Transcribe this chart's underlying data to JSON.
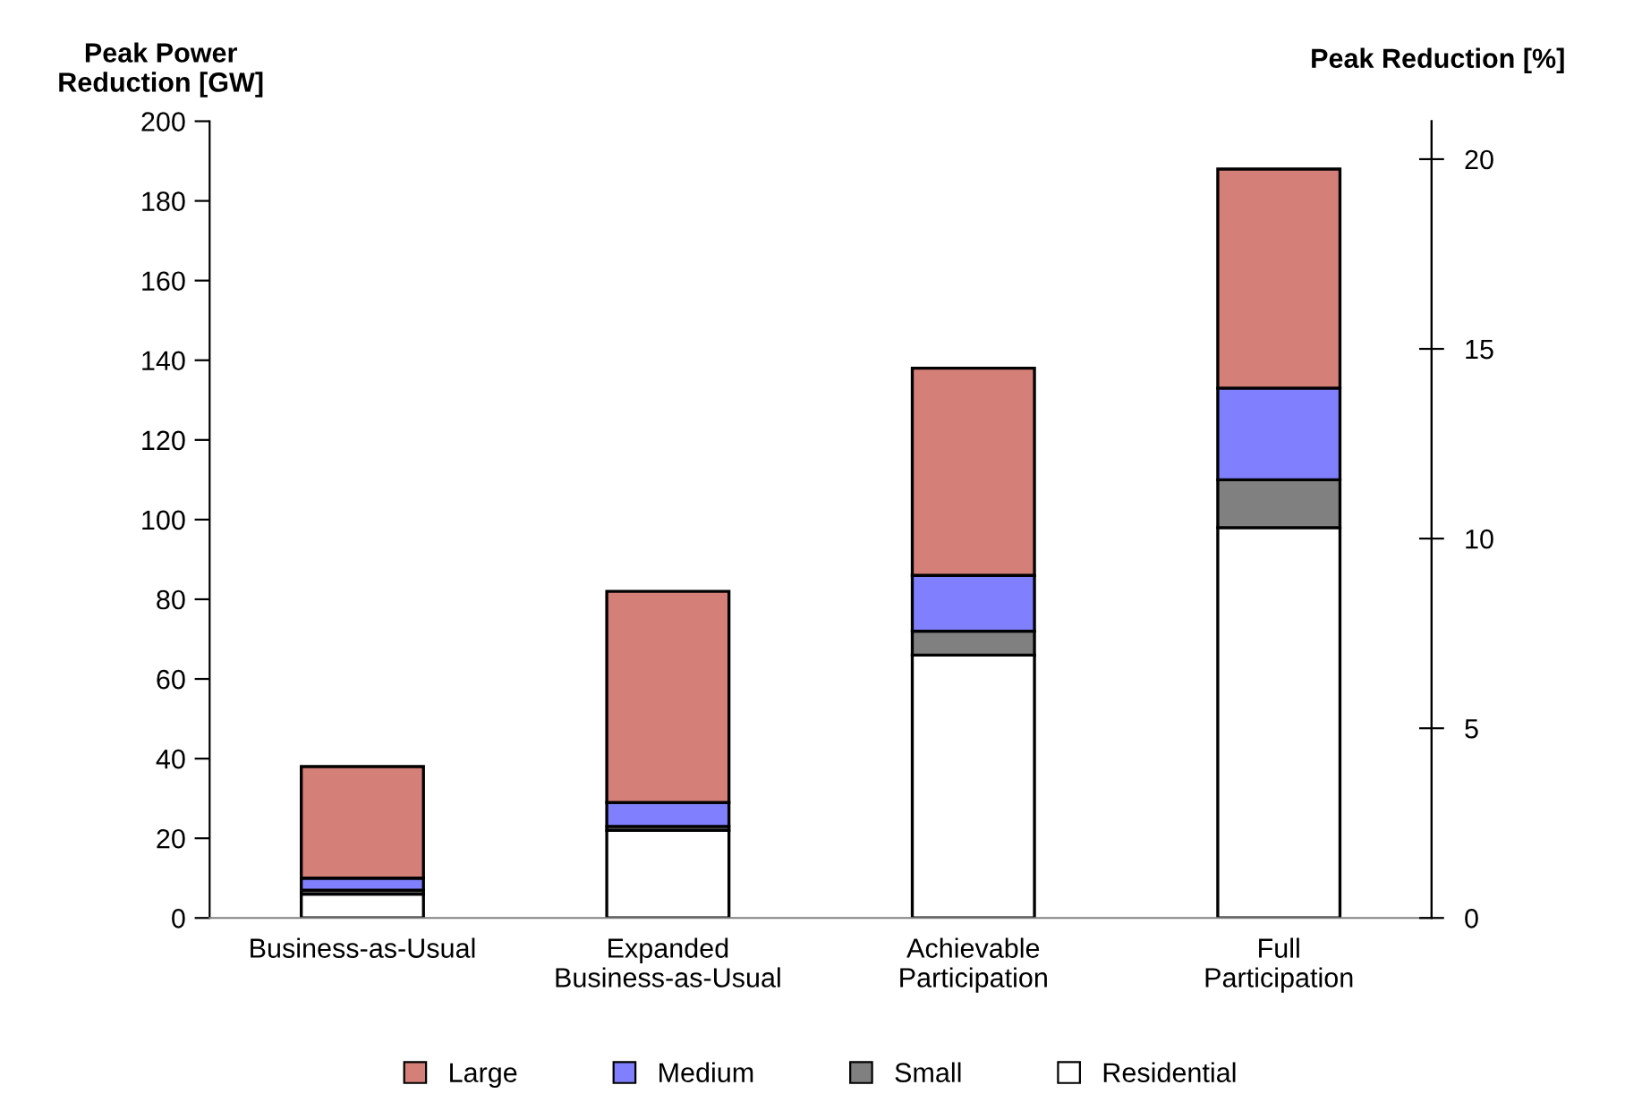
{
  "chart_data": {
    "type": "bar",
    "stacked": true,
    "categories": [
      "Business-as-Usual",
      "Expanded\nBusiness-as-Usual",
      "Achievable\nParticipation",
      "Full\nParticipation"
    ],
    "series": [
      {
        "name": "Residential",
        "color": "#ffffff",
        "values": [
          6,
          22,
          66,
          98
        ]
      },
      {
        "name": "Small",
        "color": "#808080",
        "values": [
          1,
          1,
          6,
          12
        ]
      },
      {
        "name": "Medium",
        "color": "#8080ff",
        "values": [
          3,
          6,
          14,
          23
        ]
      },
      {
        "name": "Large",
        "color": "#d47f78",
        "values": [
          28,
          53,
          52,
          55
        ]
      }
    ],
    "ylabel": "Peak Power\nReduction [GW]",
    "y2label": "Peak Reduction [%]",
    "ylim": [
      0,
      200
    ],
    "yticks": [
      0,
      20,
      40,
      60,
      80,
      100,
      120,
      140,
      160,
      180,
      200
    ],
    "y2lim": [
      0,
      21
    ],
    "y2ticks": [
      0,
      5,
      10,
      15,
      20
    ],
    "grid": false,
    "legend": "bottom"
  }
}
